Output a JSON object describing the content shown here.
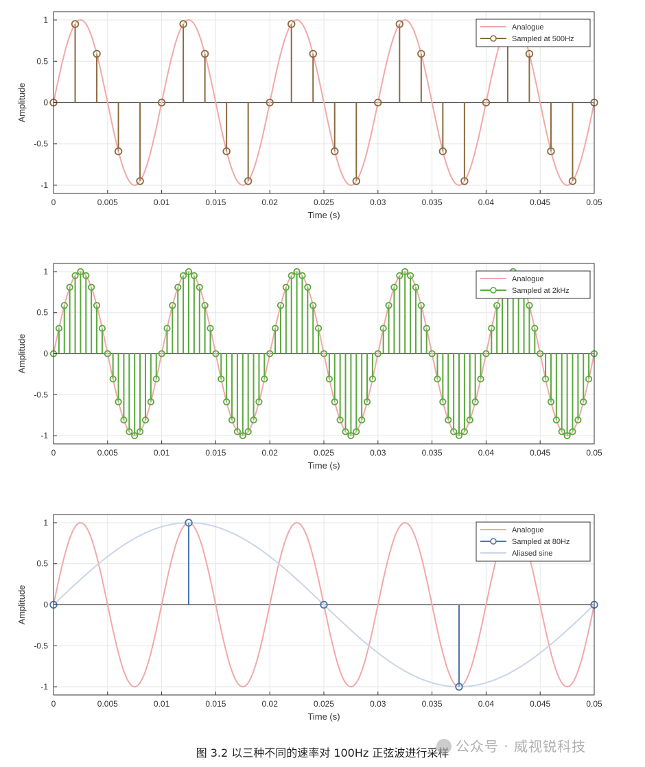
{
  "chart_data": [
    {
      "type": "line",
      "title": "",
      "xlabel": "Time (s)",
      "ylabel": "Amplitude",
      "xlim": [
        0,
        0.05
      ],
      "ylim": [
        -1.1,
        1.1
      ],
      "xticks": [
        "0",
        "0.005",
        "0.01",
        "0.015",
        "0.02",
        "0.025",
        "0.03",
        "0.035",
        "0.04",
        "0.045",
        "0.05"
      ],
      "yticks": [
        "1",
        "0.5",
        "0",
        "-0.5",
        "-1"
      ],
      "grid": true,
      "legend_position": "top-right",
      "series": [
        {
          "name": "Analogue",
          "kind": "line",
          "color": "#f2a8a8",
          "function": "sin(2*pi*100*t)"
        },
        {
          "name": "Sampled at 500Hz",
          "kind": "stem",
          "color": "#8b6a3e",
          "x": [
            0,
            0.002,
            0.004,
            0.006,
            0.008,
            0.01,
            0.012,
            0.014,
            0.016,
            0.018,
            0.02,
            0.022,
            0.024,
            0.026,
            0.028,
            0.03,
            0.032,
            0.034,
            0.036,
            0.038,
            0.04,
            0.042,
            0.044,
            0.046,
            0.048,
            0.05
          ],
          "y": [
            0,
            0.95,
            0.59,
            -0.59,
            -0.95,
            0,
            0.95,
            0.59,
            -0.59,
            -0.95,
            0,
            0.95,
            0.59,
            -0.59,
            -0.95,
            0,
            0.95,
            0.59,
            -0.59,
            -0.95,
            0,
            0.95,
            0.59,
            -0.59,
            -0.95,
            0
          ]
        }
      ]
    },
    {
      "type": "line",
      "title": "",
      "xlabel": "Time (s)",
      "ylabel": "Amplitude",
      "xlim": [
        0,
        0.05
      ],
      "ylim": [
        -1.1,
        1.1
      ],
      "xticks": [
        "0",
        "0.005",
        "0.01",
        "0.015",
        "0.02",
        "0.025",
        "0.03",
        "0.035",
        "0.04",
        "0.045",
        "0.05"
      ],
      "yticks": [
        "1",
        "0.5",
        "0",
        "-0.5",
        "-1"
      ],
      "grid": true,
      "legend_position": "top-right",
      "series": [
        {
          "name": "Analogue",
          "kind": "line",
          "color": "#f2a8a8",
          "function": "sin(2*pi*100*t)"
        },
        {
          "name": "Sampled at 2kHz",
          "kind": "stem",
          "color": "#5aa83c",
          "sample_rate_hz": 2000,
          "x_range": [
            0,
            0.05
          ],
          "function": "sin(2*pi*100*t)"
        }
      ]
    },
    {
      "type": "line",
      "title": "",
      "xlabel": "Time (s)",
      "ylabel": "Amplitude",
      "xlim": [
        0,
        0.05
      ],
      "ylim": [
        -1.1,
        1.1
      ],
      "xticks": [
        "0",
        "0.005",
        "0.01",
        "0.015",
        "0.02",
        "0.025",
        "0.03",
        "0.035",
        "0.04",
        "0.045",
        "0.05"
      ],
      "yticks": [
        "1",
        "0.5",
        "0",
        "-0.5",
        "-1"
      ],
      "grid": true,
      "legend_position": "top-right",
      "series": [
        {
          "name": "Analogue",
          "kind": "line",
          "color": "#f2a8a8",
          "function": "sin(2*pi*100*t)"
        },
        {
          "name": "Sampled at 80Hz",
          "kind": "stem",
          "color": "#4a74b0",
          "x": [
            0,
            0.0125,
            0.025,
            0.0375,
            0.05
          ],
          "y": [
            0,
            1,
            0,
            -1,
            0
          ]
        },
        {
          "name": "Aliased sine",
          "kind": "line",
          "color": "#c9d6e6",
          "function": "sin(2*pi*20*t)"
        }
      ]
    }
  ],
  "caption": "图 3.2 以三种不同的速率对 100Hz 正弦波进行采样",
  "watermark": "公众号 · 威视锐科技"
}
